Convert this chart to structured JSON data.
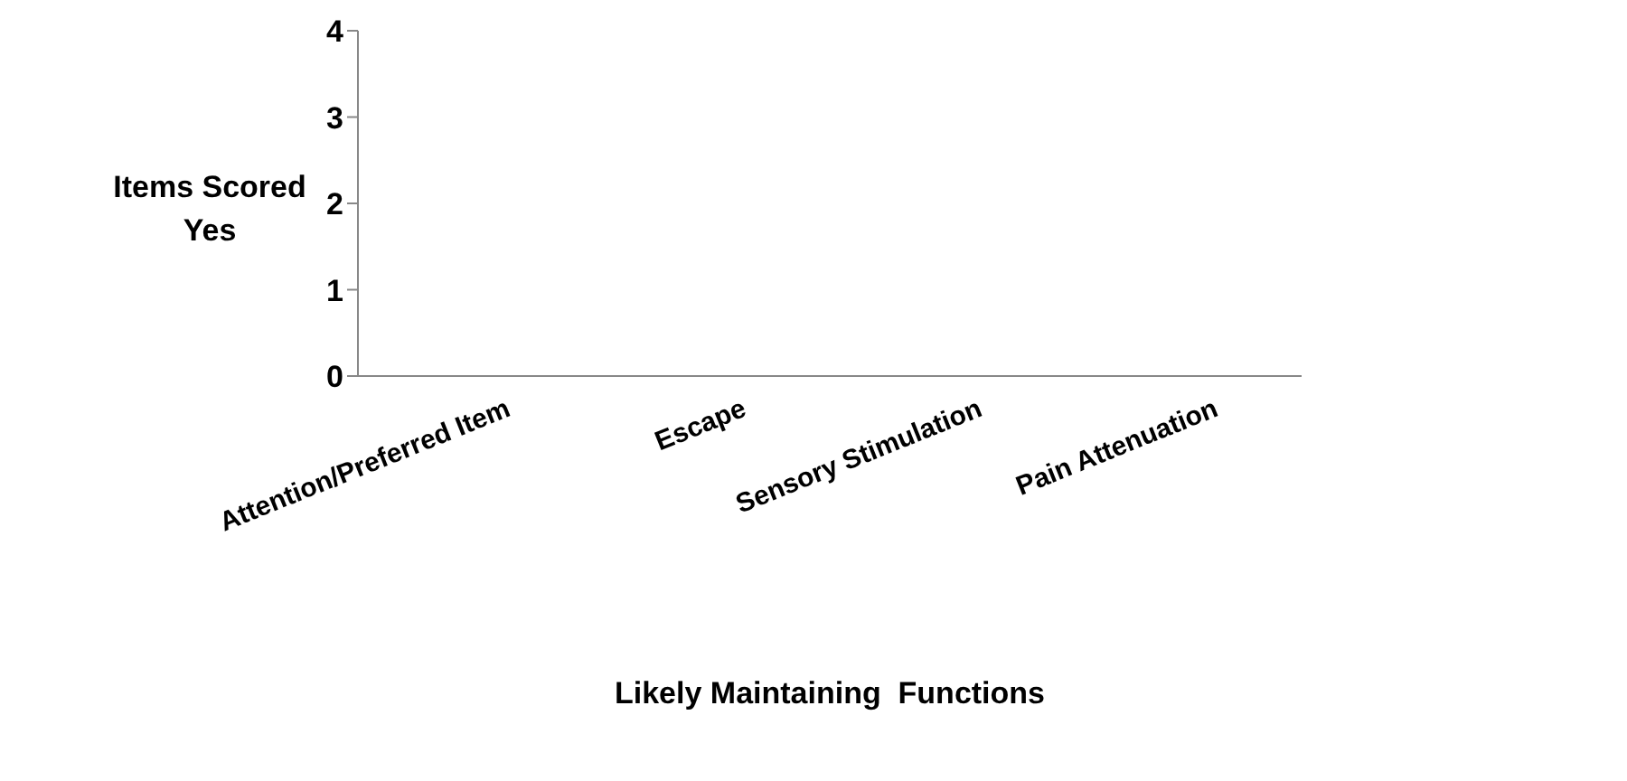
{
  "chart_data": {
    "type": "bar",
    "xlabel": "Likely Maintaining  Functions",
    "ylabel": "Items Scored Yes",
    "categories": [
      "Attention/Preferred Item",
      "Escape",
      "Sensory Stimulation",
      "Pain Attenuation"
    ],
    "values": [
      0,
      0,
      0,
      0
    ],
    "ylim": [
      0,
      4
    ],
    "yticks": [
      0,
      1,
      2,
      3,
      4
    ],
    "grid": false
  }
}
